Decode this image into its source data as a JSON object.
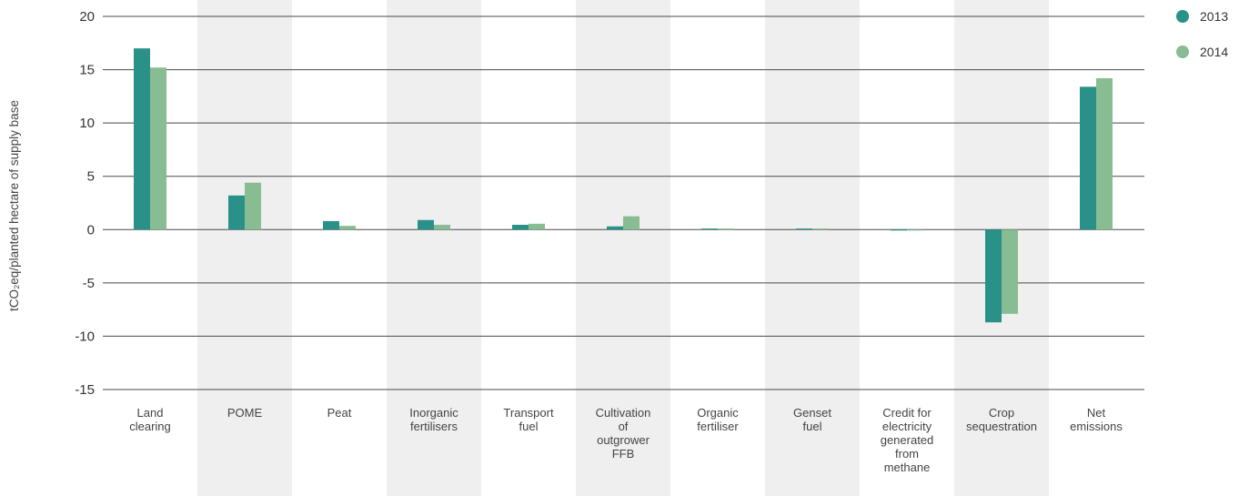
{
  "chart_data": {
    "type": "bar",
    "ylabel": "tCO₂eq/planted hectare of supply base",
    "ylim": [
      -15,
      20
    ],
    "yticks": [
      20,
      15,
      10,
      5,
      0,
      -5,
      -10,
      -15
    ],
    "grid": true,
    "legend_position": "top-right",
    "categories": [
      [
        "Land",
        "clearing"
      ],
      [
        "POME"
      ],
      [
        "Peat"
      ],
      [
        "Inorganic",
        "fertilisers"
      ],
      [
        "Transport",
        "fuel"
      ],
      [
        "Cultivation",
        "of",
        "outgrower",
        "FFB"
      ],
      [
        "Organic",
        "fertiliser"
      ],
      [
        "Genset",
        "fuel"
      ],
      [
        "Credit for",
        "electricity",
        "generated",
        "from",
        "methane"
      ],
      [
        "Crop",
        "sequestration"
      ],
      [
        "Net",
        "emissions"
      ]
    ],
    "series": [
      {
        "name": "2013",
        "color": "#2a9188",
        "values": [
          17.0,
          3.2,
          0.8,
          0.9,
          0.45,
          0.3,
          0.1,
          0.1,
          0.0,
          -8.7,
          13.4
        ]
      },
      {
        "name": "2014",
        "color": "#88bc92",
        "values": [
          15.2,
          4.4,
          0.35,
          0.45,
          0.55,
          1.25,
          0.1,
          0.1,
          0.0,
          -7.9,
          14.2
        ]
      }
    ],
    "shaded_columns": [
      1,
      3,
      5,
      7,
      9
    ],
    "colors": {
      "shade": "#efefef",
      "grid": "#4a4a4a"
    }
  }
}
